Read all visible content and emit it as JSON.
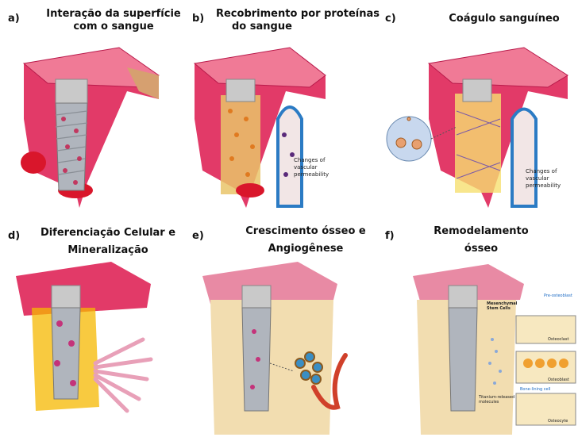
{
  "panels": {
    "a": {
      "letter": "a)",
      "title_line1": "Interação da superfície",
      "title_line2": "com o sangue"
    },
    "b": {
      "letter": "b)",
      "title_line1": "Recobrimento por proteínas",
      "title_line2": "do sangue",
      "note_line1": "Changes of vascular",
      "note_line2": "permeability"
    },
    "c": {
      "letter": "c)",
      "title_line1": "Coágulo sanguíneo",
      "note_line1": "Changes of vascular",
      "note_line2": "permeability"
    },
    "d": {
      "letter": "d)",
      "title_line1": "Diferenciação Celular e",
      "title_line2": "Mineralização"
    },
    "e": {
      "letter": "e)",
      "title_line1": "Crescimento ósseo e",
      "title_line2": "Angiogênese"
    },
    "f": {
      "letter": "f)",
      "title_line1": "Remodelamento",
      "title_line2": "ósseo",
      "labels": {
        "msc": "Mesenchymal",
        "msc2": "Stem Cells",
        "preosteoblast": "Pre-osteoblast",
        "osteoclast": "Osteoclast",
        "osteoblast": "Osteoblast",
        "titanium": "Titanium-released",
        "titanium2": "molecules",
        "bonelining": "Bone-lining cell",
        "osteocyte": "Osteocyte"
      }
    }
  },
  "colors": {
    "gum": "#e23a68",
    "gum_dark": "#b8194a",
    "bone": "#f2ddb0",
    "implant": "#bfbfbf",
    "blood": "#d9162b",
    "vessel": "#2b7bc4",
    "clot_yellow": "#f6e070",
    "mineral": "#f5b800"
  }
}
